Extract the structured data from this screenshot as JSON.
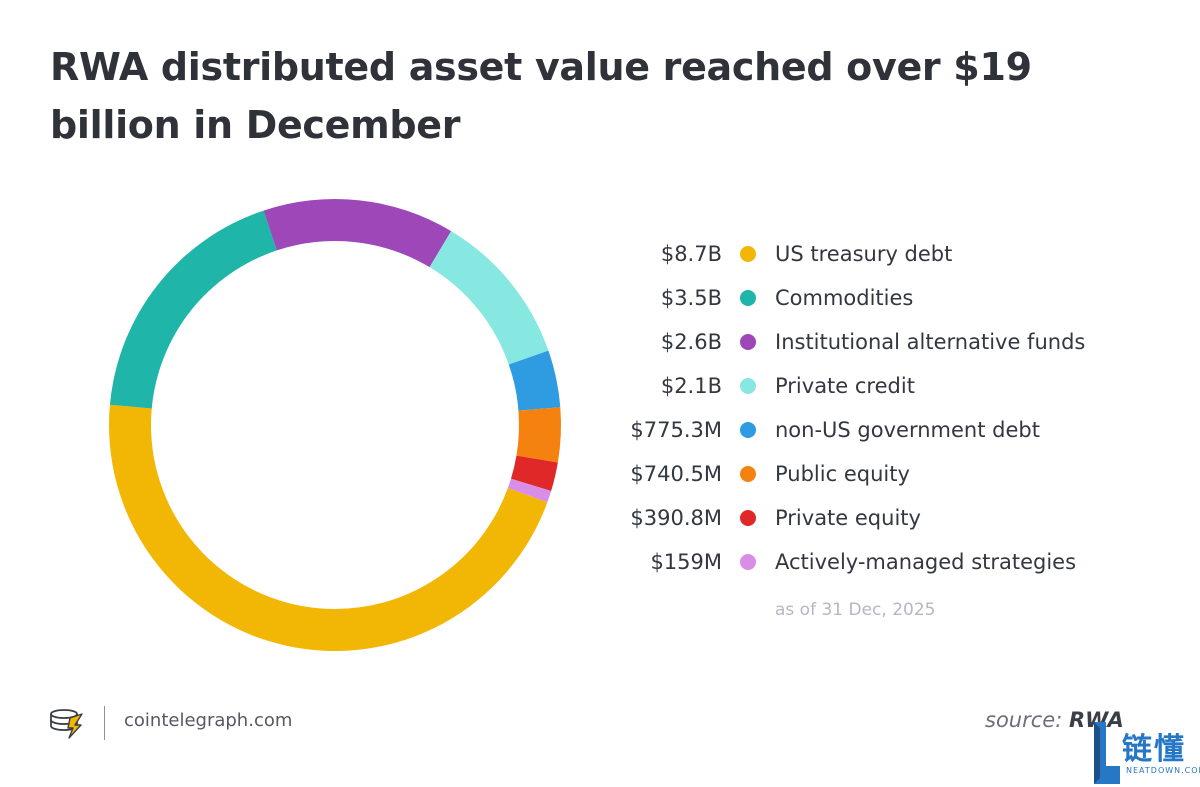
{
  "title": "RWA distributed asset value reached over $19 billion in December",
  "chart_data": {
    "type": "pie",
    "variant": "donut",
    "series": [
      {
        "name": "US treasury debt",
        "value": 8.7,
        "label": "$8.7B",
        "color": "#f2b705"
      },
      {
        "name": "Commodities",
        "value": 3.5,
        "label": "$3.5B",
        "color": "#1fb5a8"
      },
      {
        "name": "Institutional alternative funds",
        "value": 2.6,
        "label": "$2.6B",
        "color": "#9d47b8"
      },
      {
        "name": "Private credit",
        "value": 2.1,
        "label": "$2.1B",
        "color": "#86e8e0"
      },
      {
        "name": "non-US government debt",
        "value": 0.7753,
        "label": "$775.3M",
        "color": "#2f9be0"
      },
      {
        "name": "Public equity",
        "value": 0.7405,
        "label": "$740.5M",
        "color": "#f5820f"
      },
      {
        "name": "Private equity",
        "value": 0.3908,
        "label": "$390.8M",
        "color": "#e02828"
      },
      {
        "name": "Actively-managed strategies",
        "value": 0.159,
        "label": "$159M",
        "color": "#d88ee6"
      }
    ],
    "unit": "billion USD",
    "legend_position": "right",
    "note": "as of 31 Dec, 2025"
  },
  "footer": {
    "site": "cointelegraph.com",
    "source_prefix": "source:",
    "source_name": "RWA"
  },
  "watermark": {
    "cn_text": "链懂",
    "en_text": "NEATDOWN.COM"
  }
}
